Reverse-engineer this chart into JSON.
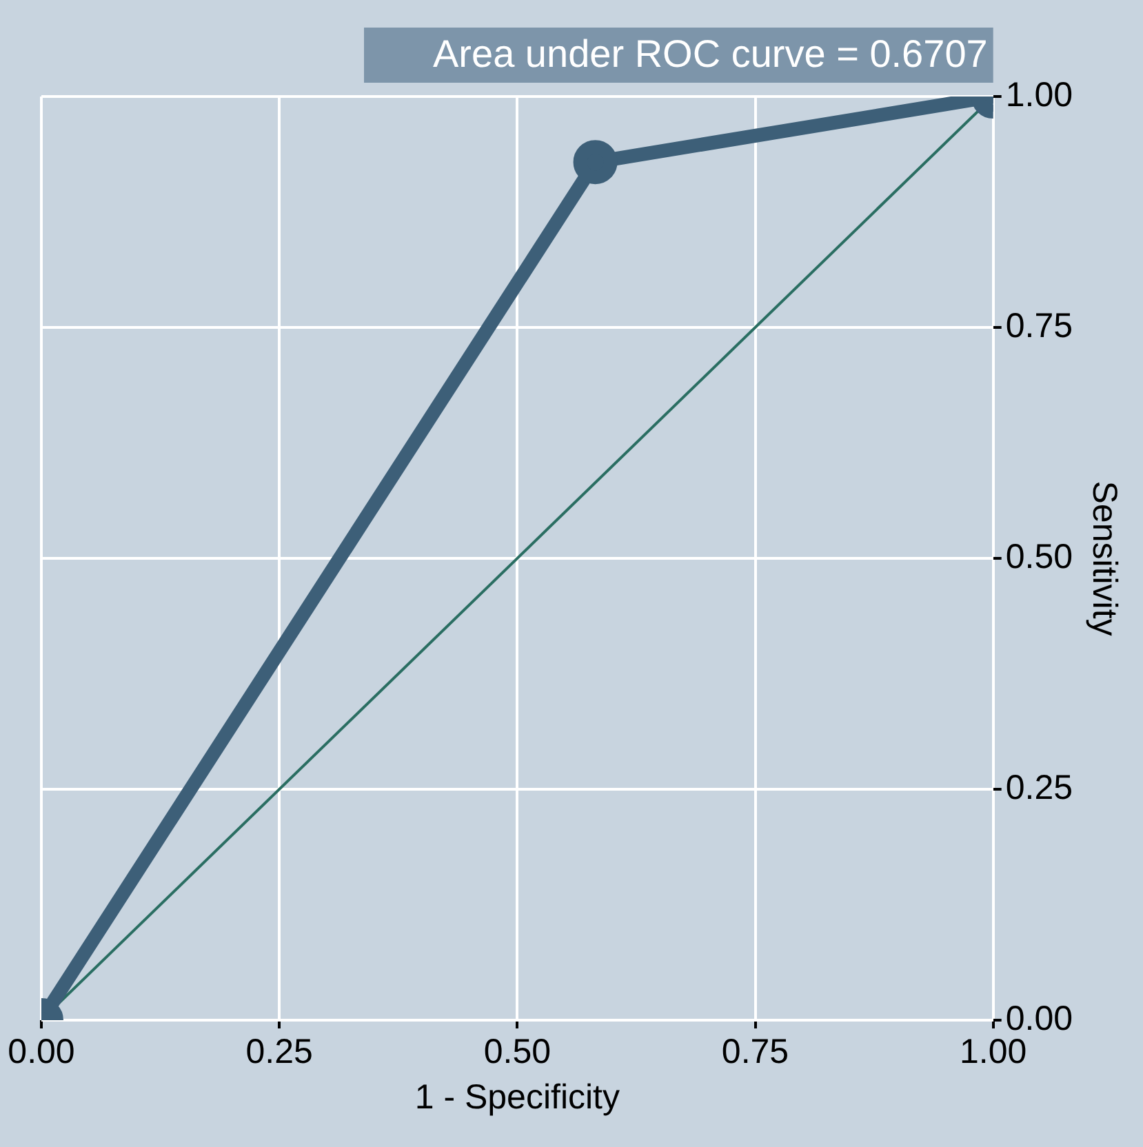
{
  "chart_data": {
    "type": "line",
    "xlabel": "1 - Specificity",
    "ylabel": "Sensitivity",
    "annotations": [
      "Area under ROC curve = 0.6707"
    ],
    "series": [
      {
        "color": "#3d5f78",
        "x": [
          0,
          0.582,
          1
        ],
        "values": [
          0,
          0.929,
          1
        ],
        "marker": "circle"
      },
      {
        "color": "#2a6e62",
        "x": [
          0,
          1
        ],
        "values": [
          0,
          1
        ],
        "marker": "none"
      }
    ],
    "xlim": [
      0,
      1
    ],
    "ylim": [
      0,
      1
    ],
    "xticks": [
      {
        "value": 0,
        "label": "0.00"
      },
      {
        "value": 0.25,
        "label": "0.25"
      },
      {
        "value": 0.5,
        "label": "0.50"
      },
      {
        "value": 0.75,
        "label": "0.75"
      },
      {
        "value": 1,
        "label": "1.00"
      }
    ],
    "yticks": [
      {
        "value": 0,
        "label": "0.00"
      },
      {
        "value": 0.25,
        "label": "0.25"
      },
      {
        "value": 0.5,
        "label": "0.50"
      },
      {
        "value": 0.75,
        "label": "0.75"
      },
      {
        "value": 1,
        "label": "1.00"
      }
    ],
    "grid": true,
    "legend": false
  }
}
